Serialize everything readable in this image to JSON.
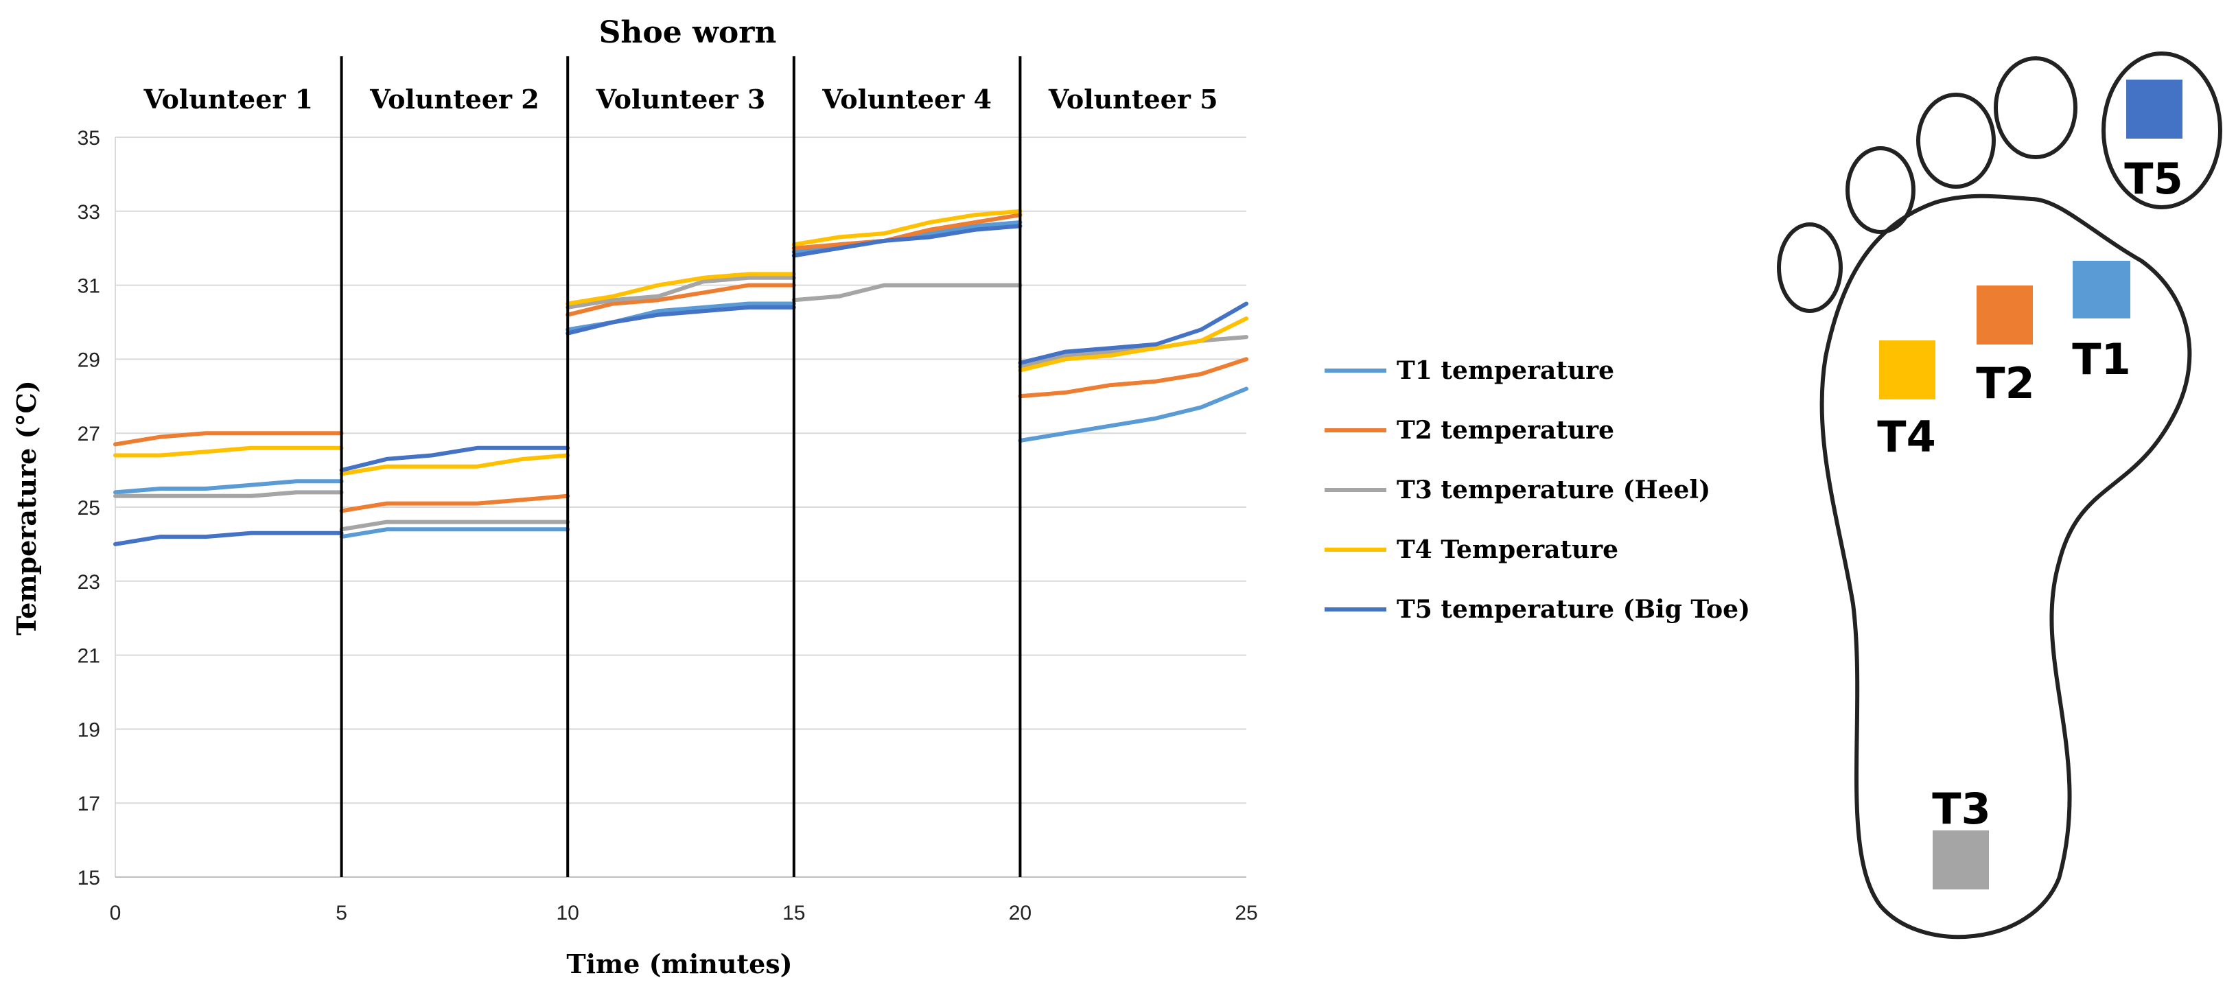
{
  "chart_data": {
    "type": "line",
    "title": "Shoe worn",
    "xlabel": "Time (minutes)",
    "ylabel": "Temperature (°C)",
    "xlim": [
      0,
      25
    ],
    "ylim": [
      15,
      35
    ],
    "xticks": [
      "0",
      "5",
      "10",
      "15",
      "20",
      "25"
    ],
    "yticks": [
      "15",
      "17",
      "19",
      "21",
      "23",
      "25",
      "27",
      "29",
      "31",
      "33",
      "35"
    ],
    "grid": true,
    "legend_position": "right",
    "dividers": [
      5,
      10,
      15,
      20
    ],
    "segments": [
      {
        "label": "Volunteer 1",
        "x_start": 0,
        "x_end": 5
      },
      {
        "label": "Volunteer 2",
        "x_start": 5,
        "x_end": 10
      },
      {
        "label": "Volunteer 3",
        "x_start": 10,
        "x_end": 15
      },
      {
        "label": "Volunteer 4",
        "x_start": 15,
        "x_end": 20
      },
      {
        "label": "Volunteer 5",
        "x_start": 20,
        "x_end": 25
      }
    ],
    "series": [
      {
        "name": "T1 temperature",
        "color": "#5b9bd5",
        "segments": [
          [
            [
              0,
              25.4
            ],
            [
              1,
              25.5
            ],
            [
              2,
              25.5
            ],
            [
              3,
              25.6
            ],
            [
              4,
              25.7
            ],
            [
              5,
              25.7
            ]
          ],
          [
            [
              5,
              24.2
            ],
            [
              6,
              24.4
            ],
            [
              7,
              24.4
            ],
            [
              8,
              24.4
            ],
            [
              9,
              24.4
            ],
            [
              10,
              24.4
            ]
          ],
          [
            [
              10,
              29.8
            ],
            [
              11,
              30.0
            ],
            [
              12,
              30.3
            ],
            [
              13,
              30.4
            ],
            [
              14,
              30.5
            ],
            [
              15,
              30.5
            ]
          ],
          [
            [
              15,
              31.9
            ],
            [
              16,
              32.1
            ],
            [
              17,
              32.2
            ],
            [
              18,
              32.4
            ],
            [
              19,
              32.6
            ],
            [
              20,
              32.7
            ]
          ],
          [
            [
              20,
              26.8
            ],
            [
              21,
              27.0
            ],
            [
              22,
              27.2
            ],
            [
              23,
              27.4
            ],
            [
              24,
              27.7
            ],
            [
              25,
              28.2
            ]
          ]
        ]
      },
      {
        "name": "T2 temperature",
        "color": "#ed7d31",
        "segments": [
          [
            [
              0,
              26.7
            ],
            [
              1,
              26.9
            ],
            [
              2,
              27.0
            ],
            [
              3,
              27.0
            ],
            [
              4,
              27.0
            ],
            [
              5,
              27.0
            ]
          ],
          [
            [
              5,
              24.9
            ],
            [
              6,
              25.1
            ],
            [
              7,
              25.1
            ],
            [
              8,
              25.1
            ],
            [
              9,
              25.2
            ],
            [
              10,
              25.3
            ]
          ],
          [
            [
              10,
              30.2
            ],
            [
              11,
              30.5
            ],
            [
              12,
              30.6
            ],
            [
              13,
              30.8
            ],
            [
              14,
              31.0
            ],
            [
              15,
              31.0
            ]
          ],
          [
            [
              15,
              32.0
            ],
            [
              16,
              32.1
            ],
            [
              17,
              32.2
            ],
            [
              18,
              32.5
            ],
            [
              19,
              32.7
            ],
            [
              20,
              32.9
            ]
          ],
          [
            [
              20,
              28.0
            ],
            [
              21,
              28.1
            ],
            [
              22,
              28.3
            ],
            [
              23,
              28.4
            ],
            [
              24,
              28.6
            ],
            [
              25,
              29.0
            ]
          ]
        ]
      },
      {
        "name": "T3 temperature (Heel)",
        "color": "#a5a5a5",
        "segments": [
          [
            [
              0,
              25.3
            ],
            [
              1,
              25.3
            ],
            [
              2,
              25.3
            ],
            [
              3,
              25.3
            ],
            [
              4,
              25.4
            ],
            [
              5,
              25.4
            ]
          ],
          [
            [
              5,
              24.4
            ],
            [
              6,
              24.6
            ],
            [
              7,
              24.6
            ],
            [
              8,
              24.6
            ],
            [
              9,
              24.6
            ],
            [
              10,
              24.6
            ]
          ],
          [
            [
              10,
              30.4
            ],
            [
              11,
              30.6
            ],
            [
              12,
              30.7
            ],
            [
              13,
              31.1
            ],
            [
              14,
              31.2
            ],
            [
              15,
              31.2
            ]
          ],
          [
            [
              15,
              30.6
            ],
            [
              16,
              30.7
            ],
            [
              17,
              31.0
            ],
            [
              18,
              31.0
            ],
            [
              19,
              31.0
            ],
            [
              20,
              31.0
            ]
          ],
          [
            [
              20,
              28.8
            ],
            [
              21,
              29.1
            ],
            [
              22,
              29.2
            ],
            [
              23,
              29.3
            ],
            [
              24,
              29.5
            ],
            [
              25,
              29.6
            ]
          ]
        ]
      },
      {
        "name": "T4 Temperature",
        "color": "#ffc000",
        "segments": [
          [
            [
              0,
              26.4
            ],
            [
              1,
              26.4
            ],
            [
              2,
              26.5
            ],
            [
              3,
              26.6
            ],
            [
              4,
              26.6
            ],
            [
              5,
              26.6
            ]
          ],
          [
            [
              5,
              25.9
            ],
            [
              6,
              26.1
            ],
            [
              7,
              26.1
            ],
            [
              8,
              26.1
            ],
            [
              9,
              26.3
            ],
            [
              10,
              26.4
            ]
          ],
          [
            [
              10,
              30.5
            ],
            [
              11,
              30.7
            ],
            [
              12,
              31.0
            ],
            [
              13,
              31.2
            ],
            [
              14,
              31.3
            ],
            [
              15,
              31.3
            ]
          ],
          [
            [
              15,
              32.1
            ],
            [
              16,
              32.3
            ],
            [
              17,
              32.4
            ],
            [
              18,
              32.7
            ],
            [
              19,
              32.9
            ],
            [
              20,
              33.0
            ]
          ],
          [
            [
              20,
              28.7
            ],
            [
              21,
              29.0
            ],
            [
              22,
              29.1
            ],
            [
              23,
              29.3
            ],
            [
              24,
              29.5
            ],
            [
              25,
              30.1
            ]
          ]
        ]
      },
      {
        "name": "T5 temperature (Big Toe)",
        "color": "#4472c4",
        "segments": [
          [
            [
              0,
              24.0
            ],
            [
              1,
              24.2
            ],
            [
              2,
              24.2
            ],
            [
              3,
              24.3
            ],
            [
              4,
              24.3
            ],
            [
              5,
              24.3
            ]
          ],
          [
            [
              5,
              26.0
            ],
            [
              6,
              26.3
            ],
            [
              7,
              26.4
            ],
            [
              8,
              26.6
            ],
            [
              9,
              26.6
            ],
            [
              10,
              26.6
            ]
          ],
          [
            [
              10,
              29.7
            ],
            [
              11,
              30.0
            ],
            [
              12,
              30.2
            ],
            [
              13,
              30.3
            ],
            [
              14,
              30.4
            ],
            [
              15,
              30.4
            ]
          ],
          [
            [
              15,
              31.8
            ],
            [
              16,
              32.0
            ],
            [
              17,
              32.2
            ],
            [
              18,
              32.3
            ],
            [
              19,
              32.5
            ],
            [
              20,
              32.6
            ]
          ],
          [
            [
              20,
              28.9
            ],
            [
              21,
              29.2
            ],
            [
              22,
              29.3
            ],
            [
              23,
              29.4
            ],
            [
              24,
              29.8
            ],
            [
              25,
              30.5
            ]
          ]
        ]
      }
    ]
  },
  "foot_diagram": {
    "sensors": [
      {
        "label": "T1",
        "color": "#5b9bd5"
      },
      {
        "label": "T2",
        "color": "#ed7d31"
      },
      {
        "label": "T3",
        "color": "#a5a5a5"
      },
      {
        "label": "T4",
        "color": "#ffc000"
      },
      {
        "label": "T5",
        "color": "#4472c4"
      }
    ]
  }
}
